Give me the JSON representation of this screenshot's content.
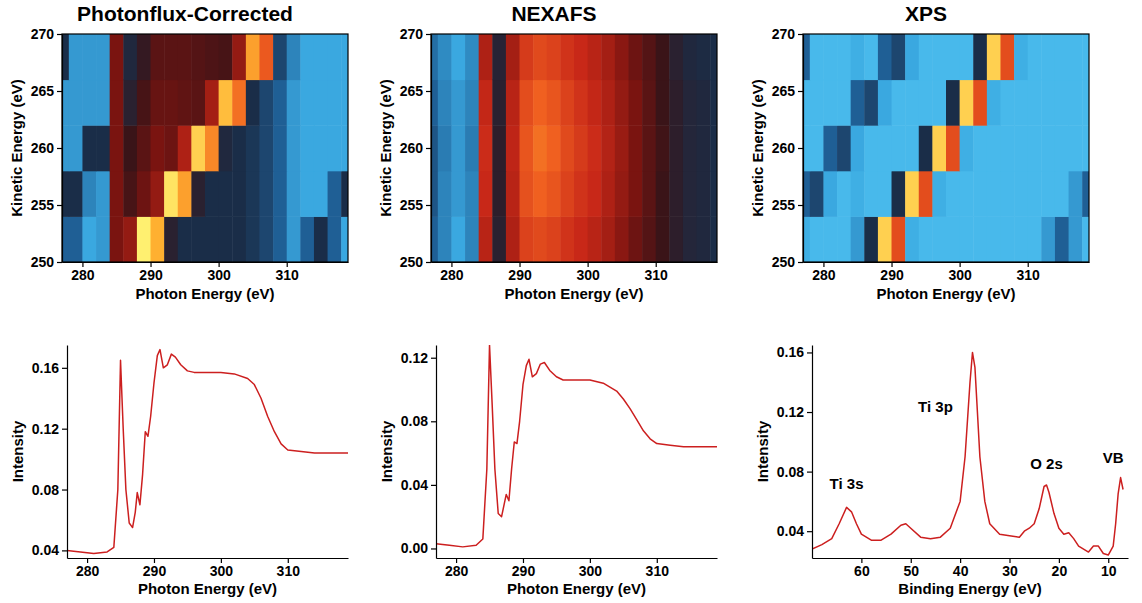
{
  "chart_data": [
    {
      "type": "heatmap",
      "title": "Photonflux-Corrected",
      "x_label": "Photon Energy (eV)",
      "y_label": "Kinetic Energy (eV)",
      "xlim": [
        277,
        319
      ],
      "ylim": [
        250,
        270
      ],
      "xticks": [
        280,
        290,
        300,
        310
      ],
      "yticks": [
        250,
        255,
        260,
        265,
        270
      ],
      "x_edges": [
        276,
        278,
        280,
        282,
        284,
        286,
        288,
        290,
        292,
        294,
        296,
        298,
        300,
        302,
        304,
        306,
        308,
        310,
        312,
        314,
        316,
        318,
        320
      ],
      "y_edges": [
        250,
        254,
        258,
        262,
        266,
        270
      ],
      "zlim": [
        0,
        1
      ],
      "z": [
        [
          0.2,
          0.2,
          0.1,
          0.12,
          0.5,
          0.55,
          1.0,
          0.9,
          0.35,
          0.3,
          0.3,
          0.3,
          0.3,
          0.3,
          0.28,
          0.25,
          0.2,
          0.12,
          0.2,
          0.3,
          0.2,
          0.1
        ],
        [
          0.3,
          0.3,
          0.15,
          0.12,
          0.5,
          0.42,
          0.48,
          0.55,
          0.98,
          0.88,
          0.35,
          0.3,
          0.3,
          0.3,
          0.28,
          0.25,
          0.2,
          0.12,
          0.1,
          0.1,
          0.2,
          0.3
        ],
        [
          0.12,
          0.12,
          0.3,
          0.3,
          0.5,
          0.4,
          0.45,
          0.5,
          0.48,
          0.6,
          0.95,
          0.85,
          0.32,
          0.3,
          0.28,
          0.25,
          0.2,
          0.12,
          0.1,
          0.1,
          0.1,
          0.1
        ],
        [
          0.12,
          0.12,
          0.12,
          0.12,
          0.5,
          0.35,
          0.42,
          0.47,
          0.47,
          0.46,
          0.45,
          0.58,
          0.92,
          0.82,
          0.3,
          0.25,
          0.2,
          0.12,
          0.1,
          0.1,
          0.1,
          0.1
        ],
        [
          0.3,
          0.12,
          0.12,
          0.12,
          0.5,
          0.32,
          0.38,
          0.45,
          0.45,
          0.45,
          0.44,
          0.43,
          0.42,
          0.55,
          0.88,
          0.78,
          0.25,
          0.15,
          0.1,
          0.1,
          0.1,
          0.1
        ]
      ]
    },
    {
      "type": "heatmap",
      "title": "NEXAFS",
      "x_label": "Photon Energy (eV)",
      "y_label": "Kinetic Energy (eV)",
      "xlim": [
        277,
        319
      ],
      "ylim": [
        250,
        270
      ],
      "xticks": [
        280,
        290,
        300,
        310
      ],
      "yticks": [
        250,
        255,
        260,
        265,
        270
      ],
      "x_edges": [
        276,
        278,
        280,
        282,
        284,
        286,
        288,
        290,
        292,
        294,
        296,
        298,
        300,
        302,
        304,
        306,
        308,
        310,
        312,
        314,
        316,
        318,
        320
      ],
      "y_edges": [
        250,
        254,
        258,
        262,
        266,
        270
      ],
      "zlim": [
        0,
        1
      ],
      "z": [
        [
          0.2,
          0.15,
          0.1,
          0.15,
          0.62,
          0.35,
          0.6,
          0.72,
          0.74,
          0.72,
          0.68,
          0.65,
          0.62,
          0.58,
          0.53,
          0.48,
          0.44,
          0.4,
          0.36,
          0.33,
          0.32,
          0.3
        ],
        [
          0.22,
          0.15,
          0.12,
          0.15,
          0.65,
          0.36,
          0.62,
          0.76,
          0.8,
          0.77,
          0.72,
          0.68,
          0.65,
          0.6,
          0.55,
          0.5,
          0.45,
          0.4,
          0.36,
          0.33,
          0.32,
          0.3
        ],
        [
          0.22,
          0.16,
          0.12,
          0.16,
          0.66,
          0.36,
          0.63,
          0.77,
          0.82,
          0.8,
          0.74,
          0.7,
          0.66,
          0.61,
          0.56,
          0.5,
          0.45,
          0.41,
          0.36,
          0.33,
          0.32,
          0.3
        ],
        [
          0.2,
          0.15,
          0.12,
          0.15,
          0.64,
          0.35,
          0.62,
          0.75,
          0.8,
          0.77,
          0.72,
          0.68,
          0.64,
          0.6,
          0.55,
          0.5,
          0.45,
          0.4,
          0.36,
          0.33,
          0.32,
          0.3
        ],
        [
          0.18,
          0.14,
          0.1,
          0.14,
          0.6,
          0.34,
          0.58,
          0.7,
          0.74,
          0.72,
          0.68,
          0.65,
          0.62,
          0.58,
          0.53,
          0.48,
          0.44,
          0.4,
          0.35,
          0.32,
          0.31,
          0.3
        ]
      ]
    },
    {
      "type": "heatmap",
      "title": "XPS",
      "x_label": "Photon Energy (eV)",
      "y_label": "Kinetic Energy (eV)",
      "xlim": [
        277,
        319
      ],
      "ylim": [
        250,
        270
      ],
      "xticks": [
        280,
        290,
        300,
        310
      ],
      "yticks": [
        250,
        255,
        260,
        265,
        270
      ],
      "x_edges": [
        276,
        278,
        280,
        282,
        284,
        286,
        288,
        290,
        292,
        294,
        296,
        298,
        300,
        302,
        304,
        306,
        308,
        310,
        312,
        314,
        316,
        318,
        320
      ],
      "y_edges": [
        250,
        254,
        258,
        262,
        266,
        270
      ],
      "zlim": [
        0,
        1
      ],
      "z": [
        [
          0.08,
          0.05,
          0.05,
          0.05,
          0.12,
          0.3,
          0.95,
          0.75,
          0.08,
          0.05,
          0.05,
          0.05,
          0.05,
          0.05,
          0.05,
          0.05,
          0.05,
          0.05,
          0.12,
          0.2,
          0.12,
          0.05
        ],
        [
          0.2,
          0.25,
          0.1,
          0.05,
          0.08,
          0.05,
          0.05,
          0.3,
          0.95,
          0.75,
          0.08,
          0.05,
          0.05,
          0.05,
          0.05,
          0.05,
          0.05,
          0.05,
          0.05,
          0.05,
          0.12,
          0.2
        ],
        [
          0.05,
          0.05,
          0.2,
          0.25,
          0.1,
          0.05,
          0.05,
          0.05,
          0.05,
          0.3,
          0.95,
          0.75,
          0.08,
          0.05,
          0.05,
          0.05,
          0.05,
          0.05,
          0.05,
          0.05,
          0.05,
          0.05
        ],
        [
          0.05,
          0.05,
          0.05,
          0.05,
          0.2,
          0.25,
          0.1,
          0.05,
          0.05,
          0.05,
          0.05,
          0.3,
          0.95,
          0.75,
          0.08,
          0.05,
          0.05,
          0.05,
          0.05,
          0.05,
          0.05,
          0.05
        ],
        [
          0.2,
          0.05,
          0.05,
          0.05,
          0.08,
          0.05,
          0.2,
          0.25,
          0.1,
          0.05,
          0.05,
          0.05,
          0.05,
          0.3,
          0.95,
          0.75,
          0.08,
          0.05,
          0.05,
          0.05,
          0.05,
          0.05
        ]
      ]
    },
    {
      "type": "line",
      "x_label": "Photon Energy (eV)",
      "y_label": "Intensity",
      "color": "#cc1f1f",
      "xlim": [
        277,
        319
      ],
      "ylim": [
        0.035,
        0.175
      ],
      "xticks": [
        280,
        290,
        300,
        310
      ],
      "yticks": [
        0.04,
        0.08,
        0.12,
        0.16
      ],
      "x": [
        277,
        279,
        281,
        283,
        284,
        284.6,
        285,
        285.4,
        285.8,
        286.3,
        286.8,
        287.2,
        287.5,
        287.9,
        288.3,
        288.7,
        289.1,
        289.5,
        290,
        290.5,
        290.9,
        291.4,
        292,
        292.6,
        293.2,
        294,
        295,
        296,
        298,
        300,
        302,
        304,
        305,
        306,
        307,
        308,
        309,
        310,
        312,
        314,
        316,
        319
      ],
      "values": [
        0.04,
        0.039,
        0.038,
        0.039,
        0.042,
        0.08,
        0.165,
        0.12,
        0.08,
        0.058,
        0.055,
        0.065,
        0.078,
        0.07,
        0.09,
        0.118,
        0.115,
        0.128,
        0.15,
        0.168,
        0.172,
        0.16,
        0.162,
        0.169,
        0.167,
        0.162,
        0.158,
        0.157,
        0.157,
        0.157,
        0.156,
        0.153,
        0.149,
        0.14,
        0.128,
        0.118,
        0.11,
        0.106,
        0.105,
        0.104,
        0.104,
        0.104
      ]
    },
    {
      "type": "line",
      "x_label": "Photon Energy (eV)",
      "y_label": "Intensity",
      "color": "#cc1f1f",
      "xlim": [
        277,
        319
      ],
      "ylim": [
        -0.006,
        0.128
      ],
      "xticks": [
        280,
        290,
        300,
        310
      ],
      "yticks": [
        {
          "value": 0,
          "label": "0.00"
        },
        0.04,
        0.08,
        0.12
      ],
      "x": [
        277,
        279,
        281,
        283,
        284,
        284.6,
        285,
        285.4,
        285.8,
        286.3,
        286.8,
        287.2,
        287.5,
        287.9,
        288.3,
        288.7,
        289.1,
        289.5,
        290,
        290.5,
        290.9,
        291.4,
        292,
        292.6,
        293.2,
        294,
        295,
        296,
        298,
        300,
        302,
        304,
        305,
        306,
        307,
        308,
        309,
        310,
        312,
        314,
        316,
        319
      ],
      "values": [
        0.003,
        0.002,
        0.001,
        0.002,
        0.006,
        0.05,
        0.128,
        0.09,
        0.05,
        0.022,
        0.02,
        0.028,
        0.034,
        0.03,
        0.05,
        0.067,
        0.066,
        0.08,
        0.103,
        0.115,
        0.119,
        0.108,
        0.11,
        0.116,
        0.117,
        0.112,
        0.108,
        0.106,
        0.106,
        0.106,
        0.104,
        0.099,
        0.094,
        0.088,
        0.081,
        0.074,
        0.069,
        0.066,
        0.065,
        0.064,
        0.064,
        0.064
      ]
    },
    {
      "type": "line",
      "x_label": "Binding Energy (eV)",
      "y_label": "Intensity",
      "color": "#cc1f1f",
      "xlim": [
        70,
        6
      ],
      "ylim": [
        0.022,
        0.165
      ],
      "xticks": [
        60,
        50,
        40,
        30,
        20,
        10
      ],
      "yticks": [
        0.04,
        0.08,
        0.12,
        0.16
      ],
      "x": [
        70,
        68,
        66,
        64.5,
        63,
        62,
        61,
        60,
        58,
        56,
        54,
        52,
        51,
        50,
        48,
        46,
        44,
        42,
        40,
        39,
        38,
        37.5,
        37,
        36.5,
        36,
        35,
        34,
        32,
        30,
        28,
        27,
        26,
        25,
        24,
        23,
        22.5,
        22,
        21,
        20,
        19,
        18,
        17,
        16,
        15,
        14,
        13,
        12,
        11,
        10,
        9,
        8.5,
        8,
        7.5,
        7
      ],
      "values": [
        0.028,
        0.031,
        0.035,
        0.045,
        0.056,
        0.053,
        0.045,
        0.038,
        0.034,
        0.034,
        0.038,
        0.044,
        0.045,
        0.042,
        0.036,
        0.035,
        0.036,
        0.042,
        0.06,
        0.09,
        0.14,
        0.16,
        0.15,
        0.12,
        0.09,
        0.06,
        0.045,
        0.038,
        0.037,
        0.036,
        0.04,
        0.042,
        0.045,
        0.055,
        0.07,
        0.071,
        0.066,
        0.052,
        0.042,
        0.038,
        0.039,
        0.035,
        0.03,
        0.028,
        0.026,
        0.03,
        0.03,
        0.025,
        0.024,
        0.03,
        0.045,
        0.065,
        0.076,
        0.068
      ],
      "annotations": [
        {
          "text": "Ti 3s",
          "x": 63,
          "y": 0.068
        },
        {
          "text": "Ti 3p",
          "x": 45,
          "y": 0.12
        },
        {
          "text": "O 2s",
          "x": 22.5,
          "y": 0.082
        },
        {
          "text": "VB",
          "x": 9,
          "y": 0.086
        }
      ]
    }
  ]
}
